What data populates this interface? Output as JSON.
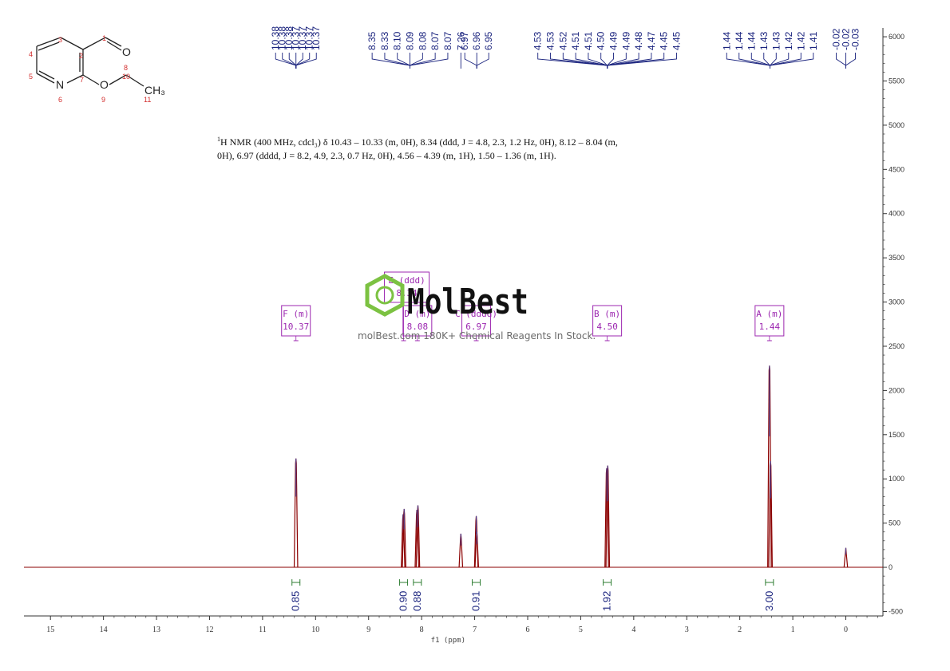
{
  "description": {
    "line1": "H NMR (400 MHz, cdcl₃) δ 10.43 – 10.33 (m, 0H), 8.34 (ddd, J = 4.8, 2.3, 1.2 Hz, 0H), 8.12 – 8.04 (m,",
    "line2": "0H), 6.97 (dddd, J = 8.2, 4.9, 2.3, 0.7 Hz, 0H), 4.56 – 4.39 (m, 1H), 1.50 – 1.36 (m, 1H).",
    "sup": "1"
  },
  "watermark": {
    "brand": "MolBest",
    "tagline": "molBest.com 180K+ Chemical Reagents In Stock."
  },
  "molecule": {
    "atom_numbers": [
      "1",
      "2",
      "3",
      "4",
      "5",
      "6",
      "7",
      "8",
      "9",
      "10",
      "11"
    ],
    "labels": {
      "n": "N",
      "o_carbonyl": "O",
      "o_ether": "O",
      "ch3": "CH₃"
    }
  },
  "chart_data": {
    "type": "line",
    "title": "",
    "xlabel": "f1 (ppm)",
    "ylabel": "",
    "xlim": [
      15.5,
      -0.7
    ],
    "ylim": [
      -550,
      6100
    ],
    "x_ticks": [
      15,
      14,
      13,
      12,
      11,
      10,
      9,
      8,
      7,
      6,
      5,
      4,
      3,
      2,
      1,
      0
    ],
    "y_ticks": [
      6000,
      5500,
      5000,
      4500,
      4000,
      3500,
      3000,
      2500,
      2000,
      1500,
      1000,
      500,
      0,
      -500
    ],
    "peaks": [
      {
        "ppm": 10.37,
        "height": 1230
      },
      {
        "ppm": 8.35,
        "height": 600
      },
      {
        "ppm": 8.33,
        "height": 660
      },
      {
        "ppm": 8.09,
        "height": 650
      },
      {
        "ppm": 8.07,
        "height": 700
      },
      {
        "ppm": 7.26,
        "height": 380
      },
      {
        "ppm": 6.97,
        "height": 580
      },
      {
        "ppm": 6.96,
        "height": 400
      },
      {
        "ppm": 4.51,
        "height": 1120
      },
      {
        "ppm": 4.49,
        "height": 1150
      },
      {
        "ppm": 1.44,
        "height": 2280
      },
      {
        "ppm": 1.42,
        "height": 1200
      },
      {
        "ppm": 0.0,
        "height": 220
      }
    ],
    "peak_labels": {
      "group1": [
        "10.38",
        "10.38",
        "10.38",
        "10.37",
        "10.37",
        "10.37",
        "10.37"
      ],
      "group2": [
        "8.35",
        "8.33",
        "8.10",
        "8.09",
        "8.08",
        "8.07",
        "8.07"
      ],
      "group3": [
        "7.26"
      ],
      "group4": [
        "6.97",
        "6.96",
        "6.95"
      ],
      "group5": [
        "4.53",
        "4.53",
        "4.52",
        "4.51",
        "4.51",
        "4.50",
        "4.49",
        "4.49",
        "4.48",
        "4.47",
        "4.45",
        "4.45"
      ],
      "group6": [
        "1.44",
        "1.44",
        "1.44",
        "1.43",
        "1.43",
        "1.42",
        "1.42",
        "1.41"
      ],
      "group7": [
        "-0.02",
        "-0.02",
        "-0.03"
      ]
    },
    "multiplets": [
      {
        "letter": "F (m)",
        "shift": "10.37",
        "ppm": 10.37
      },
      {
        "letter": "E (ddd)",
        "shift": "8.34",
        "ppm": 8.34
      },
      {
        "letter": "D (m)",
        "shift": "8.08",
        "ppm": 8.08
      },
      {
        "letter": "C (dddd)",
        "shift": "6.97",
        "ppm": 6.97
      },
      {
        "letter": "B (m)",
        "shift": "4.50",
        "ppm": 4.5
      },
      {
        "letter": "A (m)",
        "shift": "1.44",
        "ppm": 1.44
      }
    ],
    "integrals": [
      {
        "ppm": 10.37,
        "value": "0.85"
      },
      {
        "ppm": 8.34,
        "value": "0.90"
      },
      {
        "ppm": 8.08,
        "value": "0.88"
      },
      {
        "ppm": 6.97,
        "value": "0.91"
      },
      {
        "ppm": 4.5,
        "value": "1.92"
      },
      {
        "ppm": 1.44,
        "value": "3.00"
      }
    ],
    "colors": {
      "spectrum": "#8b0000",
      "peak_labels": "#1a237e",
      "multiplet_box": "#9c27b0",
      "integral": "#2e7d32",
      "watermark_green": "#7cc242"
    },
    "grid": false
  }
}
